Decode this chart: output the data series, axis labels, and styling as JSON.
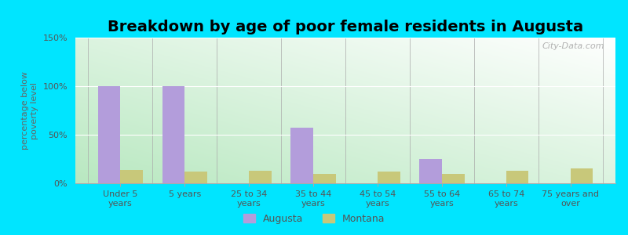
{
  "title": "Breakdown by age of poor female residents in Augusta",
  "categories": [
    "Under 5\nyears",
    "5 years",
    "25 to 34\nyears",
    "35 to 44\nyears",
    "45 to 54\nyears",
    "55 to 64\nyears",
    "65 to 74\nyears",
    "75 years and\nover"
  ],
  "augusta_values": [
    100,
    100,
    0,
    57,
    0,
    25,
    0,
    0
  ],
  "montana_values": [
    14,
    12,
    13,
    10,
    12,
    10,
    13,
    15
  ],
  "augusta_color": "#b39ddb",
  "montana_color": "#c8c87a",
  "ylabel": "percentage below\npoverty level",
  "ylim": [
    0,
    150
  ],
  "yticks": [
    0,
    50,
    100,
    150
  ],
  "ytick_labels": [
    "0%",
    "50%",
    "100%",
    "150%"
  ],
  "bar_width": 0.35,
  "outer_background": "#00e5ff",
  "watermark": "City-Data.com",
  "legend_labels": [
    "Augusta",
    "Montana"
  ],
  "gradient_colors": [
    "#b8e8c0",
    "#ffffff"
  ],
  "title_fontsize": 14,
  "tick_fontsize": 8,
  "ylabel_fontsize": 8
}
